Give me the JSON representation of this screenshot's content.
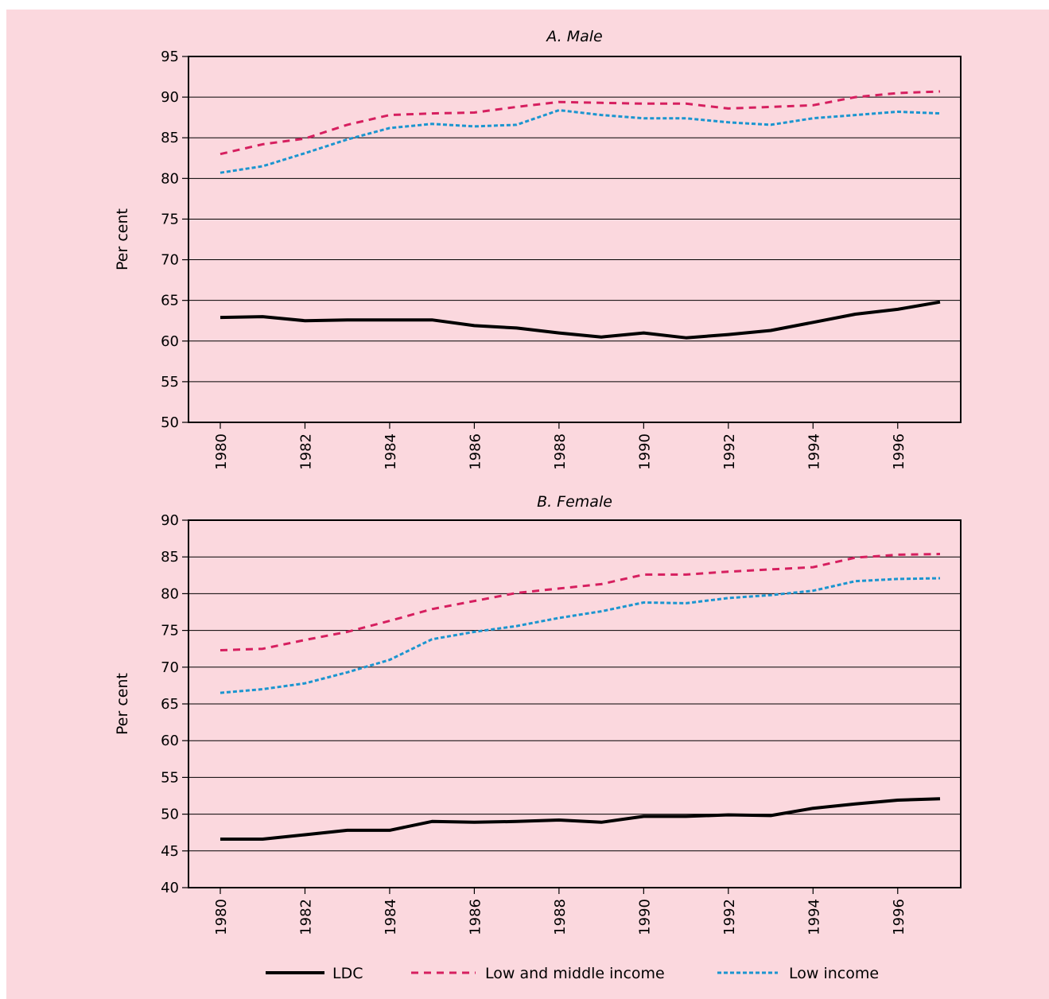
{
  "chart_data": [
    {
      "type": "line",
      "title": "A.  Male",
      "ylabel": "Per cent",
      "ylim": [
        50,
        95
      ],
      "yticks": [
        50,
        55,
        60,
        65,
        70,
        75,
        80,
        85,
        90,
        95
      ],
      "xlim": [
        1980,
        1997
      ],
      "xticks": [
        1980,
        1982,
        1984,
        1986,
        1988,
        1990,
        1992,
        1994,
        1996
      ],
      "grid": true,
      "series": [
        {
          "name": "LDC",
          "style": "solid",
          "color": "#000000",
          "x": [
            1980,
            1981,
            1982,
            1983,
            1984,
            1985,
            1986,
            1987,
            1988,
            1989,
            1990,
            1991,
            1992,
            1993,
            1994,
            1995,
            1996,
            1997
          ],
          "y": [
            62.9,
            63.0,
            62.5,
            62.6,
            62.6,
            62.6,
            61.9,
            61.6,
            61.0,
            60.5,
            61.0,
            60.4,
            60.8,
            61.3,
            62.3,
            63.3,
            63.9,
            64.8
          ]
        },
        {
          "name": "Low and  middle income",
          "style": "dashed",
          "color": "#d61f5f",
          "x": [
            1980,
            1981,
            1982,
            1983,
            1984,
            1985,
            1986,
            1987,
            1988,
            1989,
            1990,
            1991,
            1992,
            1993,
            1994,
            1995,
            1996,
            1997
          ],
          "y": [
            83.0,
            84.2,
            84.9,
            86.6,
            87.8,
            88.0,
            88.1,
            88.8,
            89.4,
            89.3,
            89.2,
            89.2,
            88.6,
            88.8,
            89.0,
            90.0,
            90.5,
            90.7
          ]
        },
        {
          "name": "Low income",
          "style": "dotted",
          "color": "#1b95cf",
          "x": [
            1980,
            1981,
            1982,
            1983,
            1984,
            1985,
            1986,
            1987,
            1988,
            1989,
            1990,
            1991,
            1992,
            1993,
            1994,
            1995,
            1996,
            1997
          ],
          "y": [
            80.7,
            81.5,
            83.1,
            84.8,
            86.2,
            86.7,
            86.4,
            86.6,
            88.4,
            87.8,
            87.4,
            87.4,
            86.9,
            86.6,
            87.4,
            87.8,
            88.2,
            88.0
          ]
        }
      ]
    },
    {
      "type": "line",
      "title": "B.  Female",
      "ylabel": "Per cent",
      "ylim": [
        40,
        90
      ],
      "yticks": [
        40,
        45,
        50,
        55,
        60,
        65,
        70,
        75,
        80,
        85,
        90
      ],
      "xlim": [
        1980,
        1997
      ],
      "xticks": [
        1980,
        1982,
        1984,
        1986,
        1988,
        1990,
        1992,
        1994,
        1996
      ],
      "grid": true,
      "series": [
        {
          "name": "LDC",
          "style": "solid",
          "color": "#000000",
          "x": [
            1980,
            1981,
            1982,
            1983,
            1984,
            1985,
            1986,
            1987,
            1988,
            1989,
            1990,
            1991,
            1992,
            1993,
            1994,
            1995,
            1996,
            1997
          ],
          "y": [
            46.6,
            46.6,
            47.2,
            47.8,
            47.8,
            49.0,
            48.9,
            49.0,
            49.2,
            48.9,
            49.7,
            49.7,
            49.9,
            49.8,
            50.8,
            51.4,
            51.9,
            52.1
          ]
        },
        {
          "name": "Low and  middle income",
          "style": "dashed",
          "color": "#d61f5f",
          "x": [
            1980,
            1981,
            1982,
            1983,
            1984,
            1985,
            1986,
            1987,
            1988,
            1989,
            1990,
            1991,
            1992,
            1993,
            1994,
            1995,
            1996,
            1997
          ],
          "y": [
            72.3,
            72.5,
            73.7,
            74.8,
            76.3,
            77.9,
            79.0,
            80.1,
            80.7,
            81.3,
            82.6,
            82.6,
            83.0,
            83.3,
            83.6,
            84.9,
            85.3,
            85.4
          ]
        },
        {
          "name": "Low income",
          "style": "dotted",
          "color": "#1b95cf",
          "x": [
            1980,
            1981,
            1982,
            1983,
            1984,
            1985,
            1986,
            1987,
            1988,
            1989,
            1990,
            1991,
            1992,
            1993,
            1994,
            1995,
            1996,
            1997
          ],
          "y": [
            66.5,
            67.0,
            67.8,
            69.3,
            71.0,
            73.8,
            74.8,
            75.6,
            76.7,
            77.6,
            78.8,
            78.7,
            79.4,
            79.8,
            80.4,
            81.7,
            82.0,
            82.1
          ]
        }
      ]
    }
  ],
  "legend": {
    "items": [
      {
        "label": "LDC",
        "style": "solid",
        "color": "#000000"
      },
      {
        "label": "Low and  middle income",
        "style": "dashed",
        "color": "#d61f5f"
      },
      {
        "label": "Low income",
        "style": "dotted",
        "color": "#1b95cf"
      }
    ]
  }
}
